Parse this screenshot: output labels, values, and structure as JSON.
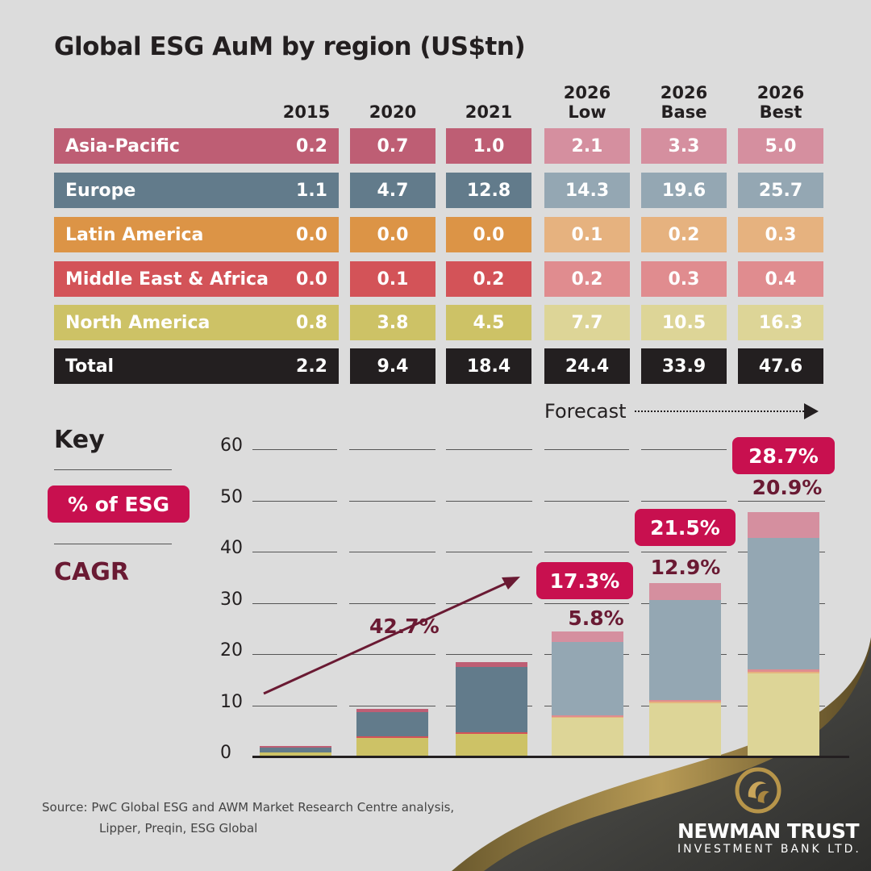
{
  "title": "Global ESG AuM by region (US$tn)",
  "forecast_label": "Forecast",
  "key": {
    "heading": "Key",
    "pct_label": "% of ESG",
    "cagr_label": "CAGR",
    "pct_color": "#c8104f",
    "cagr_color": "#6a1a33"
  },
  "chart_data": {
    "type": "bar",
    "stacked": true,
    "title": "Global ESG AuM by region (US$tn)",
    "categories": [
      "2015",
      "2020",
      "2021",
      "2026\nLow",
      "2026\nBase",
      "2026\nBest"
    ],
    "forecast_categories": [
      "2026\nLow",
      "2026\nBase",
      "2026\nBest"
    ],
    "ylim": [
      0,
      60
    ],
    "yticks": [
      "0",
      "10",
      "20",
      "30",
      "40",
      "50",
      "60"
    ],
    "grid": true,
    "series": [
      {
        "name": "Asia-Pacific",
        "values": [
          "0.2",
          "0.7",
          "1.0",
          "2.1",
          "3.3",
          "5.0"
        ],
        "color": "#be5e74",
        "forecast_color": "#d58f9f"
      },
      {
        "name": "Europe",
        "values": [
          "1.1",
          "4.7",
          "12.8",
          "14.3",
          "19.6",
          "25.7"
        ],
        "color": "#627b8b",
        "forecast_color": "#94a7b3"
      },
      {
        "name": "Latin America",
        "values": [
          "0.0",
          "0.0",
          "0.0",
          "0.1",
          "0.2",
          "0.3"
        ],
        "color": "#dc9446",
        "forecast_color": "#e6b27f"
      },
      {
        "name": "Middle East & Africa",
        "values": [
          "0.0",
          "0.1",
          "0.2",
          "0.2",
          "0.3",
          "0.4"
        ],
        "color": "#d35358",
        "forecast_color": "#e08c8f"
      },
      {
        "name": "North America",
        "values": [
          "0.8",
          "3.8",
          "4.5",
          "7.7",
          "10.5",
          "16.3"
        ],
        "color": "#cdc266",
        "forecast_color": "#ddd597"
      }
    ],
    "total": {
      "name": "Total",
      "values": [
        "2.2",
        "9.4",
        "18.4",
        "24.4",
        "33.9",
        "47.6"
      ],
      "color": "#231f20"
    },
    "annotations": {
      "pct_of_esg": [
        "17.3%",
        "21.5%",
        "28.7%"
      ],
      "cagr_forecast": [
        "5.8%",
        "12.9%",
        "20.9%"
      ],
      "cagr_2015_2021": "42.7%"
    }
  },
  "source": {
    "line1": "Source: PwC Global ESG and AWM Market Research Centre analysis,",
    "line2": "Lipper, Preqin, ESG Global"
  },
  "logo": {
    "name": "NEWMAN TRUST",
    "sub": "INVESTMENT BANK LTD."
  }
}
